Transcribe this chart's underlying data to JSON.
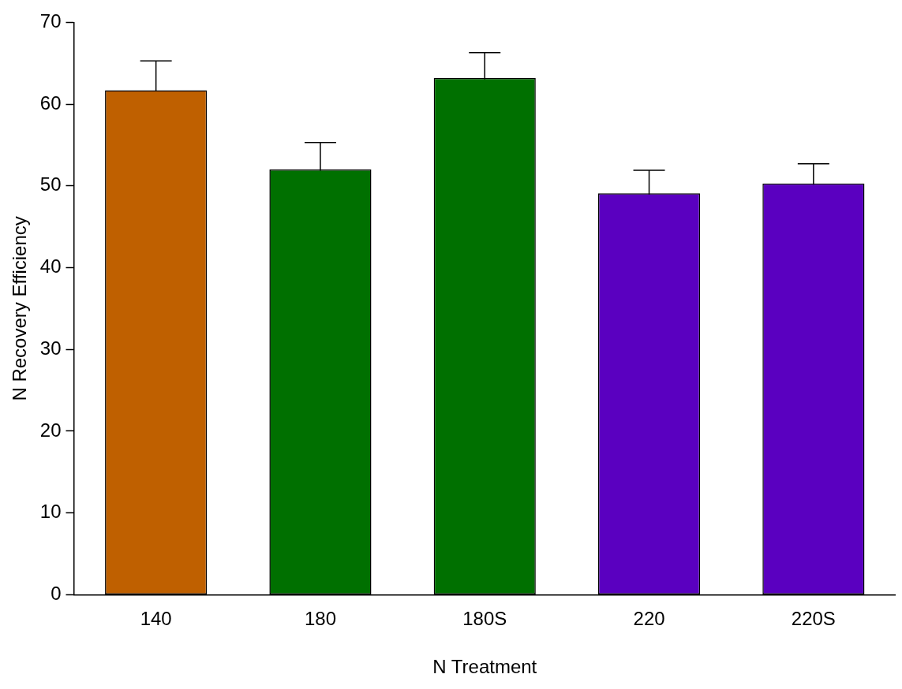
{
  "chart_data": {
    "type": "bar",
    "xlabel": "N Treatment",
    "ylabel": "N Recovery Efficiency",
    "categories": [
      "140",
      "180",
      "180S",
      "220",
      "220S"
    ],
    "values": [
      61.7,
      52.0,
      63.2,
      49.1,
      50.3
    ],
    "errors": [
      3.6,
      3.3,
      3.1,
      2.8,
      2.4
    ],
    "colors": [
      "#bf6000",
      "#007000",
      "#007000",
      "#5a00c0",
      "#5a00c0"
    ],
    "ylim": [
      0,
      70
    ],
    "yticks": [
      0,
      10,
      20,
      30,
      40,
      50,
      60,
      70
    ],
    "grid": false,
    "legend": false
  }
}
